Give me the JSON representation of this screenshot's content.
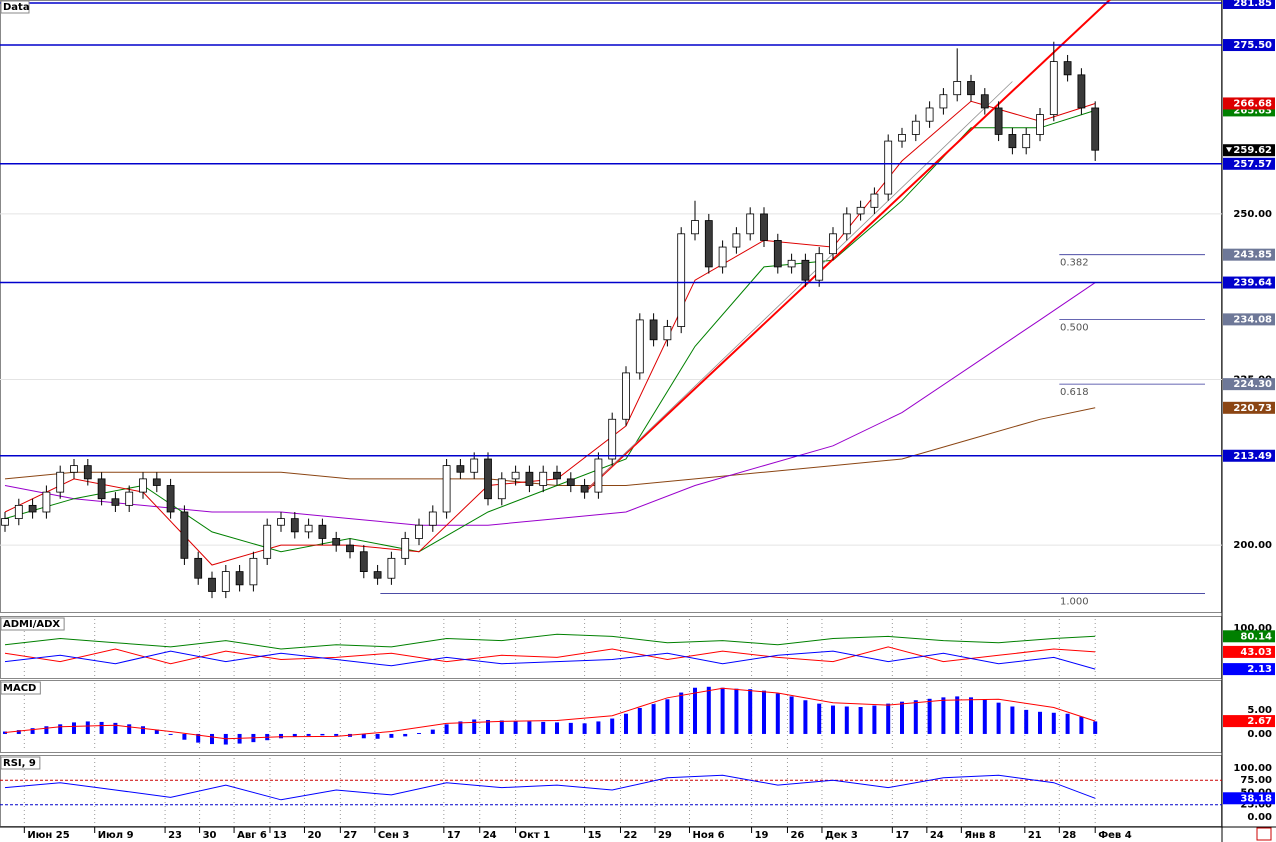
{
  "chart_data": {
    "type": "candlestick",
    "title": "Data",
    "xticks": [
      {
        "value": 1.4,
        "label": "Июн 25"
      },
      {
        "value": 6.5,
        "label": "Июл 9"
      },
      {
        "value": 11.6,
        "label": "23"
      },
      {
        "value": 14.1,
        "label": "30"
      },
      {
        "value": 16.6,
        "label": "Авг 6"
      },
      {
        "value": 19.2,
        "label": "13"
      },
      {
        "value": 21.7,
        "label": "20"
      },
      {
        "value": 24.3,
        "label": "27"
      },
      {
        "value": 26.8,
        "label": "Сен 3"
      },
      {
        "value": 31.8,
        "label": "17"
      },
      {
        "value": 34.4,
        "label": "24"
      },
      {
        "value": 37,
        "label": "Окт 1"
      },
      {
        "value": 42,
        "label": "15"
      },
      {
        "value": 44.6,
        "label": "22"
      },
      {
        "value": 47.1,
        "label": "29"
      },
      {
        "value": 49.6,
        "label": "Ноя 6"
      },
      {
        "value": 54.1,
        "label": "19"
      },
      {
        "value": 56.7,
        "label": "26"
      },
      {
        "value": 59.2,
        "label": "Дек 3"
      },
      {
        "value": 64.3,
        "label": "17"
      },
      {
        "value": 66.8,
        "label": "24"
      },
      {
        "value": 69.3,
        "label": "Янв 8"
      },
      {
        "value": 73.9,
        "label": "21"
      },
      {
        "value": 76.4,
        "label": "28"
      },
      {
        "value": 79,
        "label": "Фев 4"
      }
    ],
    "open": [
      203,
      204,
      206,
      205,
      208,
      211,
      212,
      210,
      207,
      206,
      208,
      210,
      209,
      205,
      198,
      195,
      193,
      196,
      194,
      198,
      203,
      204,
      202,
      203,
      201,
      200,
      199,
      196,
      195,
      198,
      201,
      203,
      205,
      212,
      211,
      213,
      207,
      210,
      211,
      209,
      211,
      210,
      209,
      208,
      213,
      219,
      226,
      234,
      231,
      233,
      247,
      249,
      242,
      245,
      247,
      250,
      246,
      242,
      243,
      240,
      244,
      247,
      250,
      251,
      253,
      261,
      262,
      264,
      266,
      268,
      270,
      268,
      266,
      262,
      260,
      262,
      265,
      273,
      271,
      266
    ],
    "high": [
      205,
      207,
      207,
      209,
      212,
      213,
      213,
      211,
      208,
      209,
      211,
      211,
      210,
      206,
      199,
      196,
      197,
      197,
      199,
      204,
      205,
      205,
      204,
      204,
      202,
      201,
      200,
      197,
      199,
      202,
      204,
      206,
      213,
      213,
      214,
      214,
      211,
      212,
      212,
      212,
      212,
      211,
      210,
      214,
      220,
      227,
      235,
      235,
      234,
      248,
      252,
      250,
      246,
      248,
      251,
      251,
      247,
      244,
      244,
      245,
      248,
      251,
      252,
      254,
      262,
      263,
      265,
      267,
      269,
      275,
      271,
      269,
      267,
      263,
      263,
      266,
      276,
      274,
      272,
      267
    ],
    "low": [
      202,
      203,
      204,
      204,
      207,
      210,
      209,
      206,
      205,
      205,
      207,
      208,
      204,
      197,
      194,
      192,
      192,
      193,
      193,
      197,
      202,
      201,
      201,
      200,
      199,
      198,
      195,
      194,
      194,
      197,
      200,
      202,
      204,
      210,
      210,
      206,
      206,
      209,
      208,
      208,
      209,
      208,
      207,
      207,
      212,
      218,
      225,
      230,
      230,
      232,
      246,
      241,
      241,
      244,
      246,
      245,
      241,
      241,
      239,
      239,
      243,
      246,
      249,
      250,
      252,
      260,
      261,
      263,
      265,
      267,
      267,
      265,
      261,
      259,
      259,
      261,
      264,
      270,
      265,
      258
    ],
    "close": [
      204,
      206,
      205,
      208,
      211,
      212,
      210,
      207,
      206,
      208,
      210,
      209,
      205,
      198,
      195,
      193,
      196,
      194,
      198,
      203,
      204,
      202,
      203,
      201,
      200,
      199,
      196,
      195,
      198,
      201,
      203,
      205,
      212,
      211,
      213,
      207,
      210,
      211,
      209,
      211,
      210,
      209,
      208,
      213,
      219,
      226,
      234,
      231,
      233,
      247,
      249,
      242,
      245,
      247,
      250,
      246,
      242,
      243,
      240,
      244,
      247,
      250,
      251,
      253,
      261,
      262,
      264,
      266,
      268,
      270,
      268,
      266,
      262,
      260,
      262,
      265,
      273,
      271,
      266,
      259.62
    ],
    "up_color": "#ffffff",
    "down_color": "#3a3a3a",
    "ylim": [
      189.9,
      282.3
    ],
    "yticks": [
      {
        "value": 200,
        "label": "200.00"
      },
      {
        "value": 225,
        "label": "225.00"
      },
      {
        "value": 250,
        "label": "250.00"
      }
    ],
    "last_price_label": "259.62",
    "overlays": [
      {
        "color": "#8b4513",
        "x": [
          0,
          5,
          10,
          15,
          20,
          25,
          30,
          35,
          40,
          45,
          50,
          55,
          60,
          65,
          70,
          75,
          79
        ],
        "values": [
          210,
          211,
          211,
          211,
          211,
          210,
          210,
          210,
          209,
          209,
          210,
          211,
          212,
          213,
          216,
          219,
          220.73
        ],
        "last_label": "220.73"
      },
      {
        "color": "#9900cc",
        "x": [
          0,
          5,
          10,
          15,
          20,
          25,
          30,
          35,
          40,
          45,
          50,
          55,
          60,
          65,
          70,
          75,
          79
        ],
        "values": [
          209,
          207,
          206,
          205,
          205,
          204,
          203,
          203,
          204,
          205,
          209,
          212,
          215,
          220,
          227,
          234,
          239.64
        ]
      },
      {
        "color": "#008000",
        "x": [
          0,
          5,
          10,
          15,
          20,
          25,
          30,
          35,
          40,
          45,
          50,
          55,
          60,
          65,
          70,
          75,
          79
        ],
        "values": [
          204,
          207,
          209,
          202,
          199,
          201,
          199,
          205,
          209,
          213,
          230,
          242,
          243,
          252,
          263,
          263,
          265.63
        ],
        "last_label": "265.63"
      },
      {
        "color": "#dd0000",
        "x": [
          0,
          5,
          10,
          15,
          20,
          25,
          30,
          35,
          40,
          45,
          50,
          55,
          60,
          65,
          70,
          75,
          79
        ],
        "values": [
          205,
          210,
          208,
          197,
          200,
          200,
          199,
          209,
          210,
          218,
          240,
          246,
          245,
          258,
          267,
          264,
          266.68
        ],
        "last_label": "266.68"
      }
    ],
    "levels": [
      {
        "value": 281.85,
        "label": "281.85"
      },
      {
        "value": 275.5,
        "label": "275.50"
      },
      {
        "value": 257.57,
        "label": "257.57"
      },
      {
        "value": 239.64,
        "label": "239.64"
      },
      {
        "value": 213.49,
        "label": "213.49"
      }
    ],
    "level_color": "#0000cc",
    "trendlines": [
      {
        "color": "#ff0000",
        "x": [
          42,
          80.4
        ],
        "values": [
          208,
          283
        ]
      },
      {
        "color": "#909090",
        "x": [
          42,
          73
        ],
        "values": [
          208,
          270
        ]
      }
    ],
    "fib_levels": [
      {
        "ratio": "0.382",
        "value": 243.85,
        "label": "243.85",
        "x_from": 76.4
      },
      {
        "ratio": "0.500",
        "value": 234.08,
        "label": "234.08",
        "x_from": 76.4
      },
      {
        "ratio": "0.618",
        "value": 224.3,
        "label": "224.30",
        "x_from": 76.4
      },
      {
        "ratio": "1.000",
        "value": 192.7,
        "x_from": 27.2
      }
    ],
    "fib_color": "#333399",
    "adx": {
      "title": "ADMI/ADX",
      "ylim": [
        -19,
        126
      ],
      "yticks": [
        {
          "value": 100,
          "label": "100.00"
        }
      ],
      "x": [
        0,
        4,
        8,
        12,
        16,
        20,
        24,
        28,
        32,
        36,
        40,
        44,
        48,
        52,
        56,
        60,
        64,
        68,
        72,
        76,
        79
      ],
      "series": [
        {
          "color": "#008000",
          "values": [
            60,
            75,
            65,
            55,
            70,
            50,
            60,
            55,
            75,
            70,
            85,
            80,
            65,
            70,
            60,
            75,
            80,
            70,
            65,
            75,
            80.14
          ],
          "last_label": "80.14"
        },
        {
          "color": "#ff0000",
          "values": [
            40,
            20,
            50,
            15,
            45,
            25,
            30,
            40,
            20,
            35,
            30,
            50,
            25,
            45,
            30,
            20,
            55,
            20,
            35,
            50,
            43.03
          ],
          "last_label": "43.03"
        },
        {
          "color": "#0000ff",
          "values": [
            20,
            35,
            15,
            45,
            20,
            40,
            25,
            10,
            30,
            15,
            20,
            25,
            40,
            15,
            35,
            45,
            20,
            40,
            15,
            30,
            2.13
          ],
          "last_label": "2.13"
        }
      ]
    },
    "macd": {
      "title": "MACD",
      "ylim": [
        -3.75,
        11
      ],
      "yticks": [
        {
          "value": 5,
          "label": "5.00"
        },
        {
          "value": 0,
          "label": "0.00"
        }
      ],
      "hist_color": "#0000ff",
      "histogram": [
        0.5,
        0.8,
        1.2,
        1.6,
        2.0,
        2.4,
        2.6,
        2.5,
        2.3,
        2.0,
        1.6,
        0.9,
        -0.2,
        -1.2,
        -1.8,
        -2.1,
        -2.2,
        -2.0,
        -1.7,
        -1.3,
        -0.9,
        -0.6,
        -0.4,
        -0.3,
        -0.4,
        -0.6,
        -0.9,
        -1.0,
        -0.8,
        -0.5,
        0.2,
        0.9,
        2.0,
        2.6,
        3.0,
        2.9,
        2.8,
        2.7,
        2.6,
        2.5,
        2.4,
        2.3,
        2.2,
        2.6,
        3.2,
        4.2,
        5.4,
        6.2,
        7.2,
        8.6,
        9.6,
        9.8,
        9.6,
        9.4,
        9.3,
        9.0,
        8.4,
        7.8,
        7.0,
        6.3,
        5.9,
        5.7,
        5.6,
        5.9,
        6.3,
        6.7,
        7.0,
        7.3,
        7.6,
        7.8,
        7.6,
        7.2,
        6.5,
        5.7,
        5.0,
        4.6,
        4.4,
        4.2,
        3.6,
        2.6
      ],
      "signal": {
        "color": "#ff0000",
        "x": [
          0,
          4,
          8,
          12,
          16,
          20,
          24,
          28,
          32,
          36,
          40,
          44,
          48,
          52,
          56,
          60,
          64,
          68,
          72,
          76,
          79
        ],
        "values": [
          0.3,
          1.5,
          1.8,
          0.5,
          -1.0,
          -0.6,
          -0.5,
          0.5,
          2.2,
          2.6,
          2.8,
          3.8,
          7.5,
          9.5,
          8.5,
          6.5,
          6.0,
          7.0,
          7.2,
          5.5,
          2.67
        ],
        "last_label": "2.67"
      }
    },
    "rsi": {
      "title": "RSI, 9",
      "ylim": [
        -18.4,
        124.5
      ],
      "yticks": [
        {
          "value": 100,
          "label": "100.00"
        },
        {
          "value": 75,
          "label": "75.00"
        },
        {
          "value": 50,
          "label": "50.00"
        },
        {
          "value": 25,
          "label": "25.00"
        },
        {
          "value": 0,
          "label": "0.00"
        }
      ],
      "levels": [
        {
          "value": 75,
          "color": "#cc0000"
        },
        {
          "value": 25,
          "color": "#0000cc"
        }
      ],
      "line": {
        "color": "#0000ff",
        "x": [
          0,
          4,
          8,
          12,
          16,
          20,
          24,
          28,
          32,
          36,
          40,
          44,
          48,
          52,
          56,
          60,
          64,
          68,
          72,
          76,
          79
        ],
        "values": [
          60,
          70,
          55,
          40,
          65,
          35,
          55,
          45,
          70,
          60,
          65,
          55,
          80,
          85,
          65,
          75,
          60,
          80,
          85,
          70,
          38.18
        ],
        "last_label": "38.18"
      }
    }
  }
}
